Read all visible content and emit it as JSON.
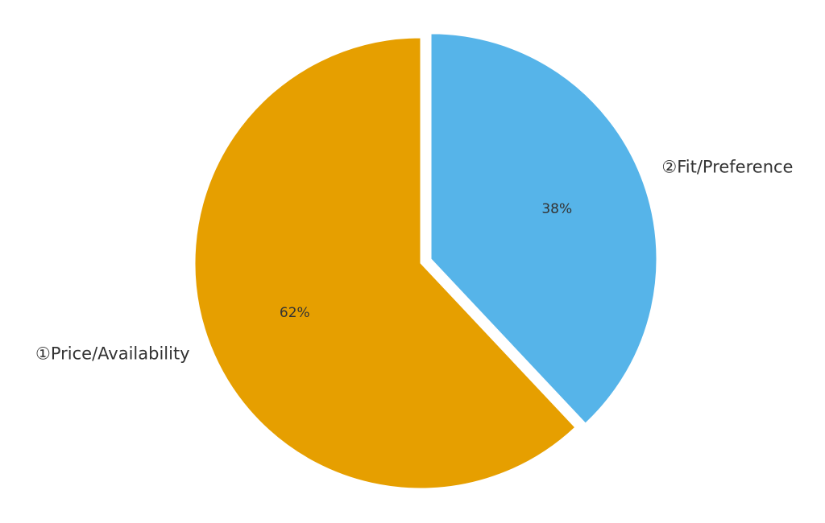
{
  "chart_data": {
    "type": "pie",
    "categories": [
      "①Price/Availability",
      "②Fit/Preference"
    ],
    "values": [
      62,
      38
    ],
    "value_labels": [
      "62%",
      "38%"
    ],
    "colors": [
      "#e69f00",
      "#56b4e9"
    ],
    "explode": [
      0,
      0.05
    ],
    "start_angle": 90,
    "direction": "counterclockwise"
  }
}
